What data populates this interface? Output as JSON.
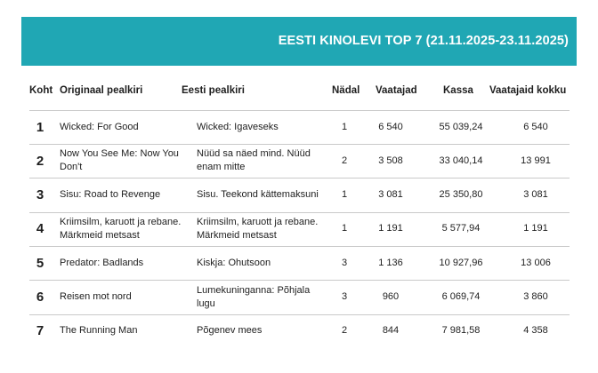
{
  "title": "EESTI KINOLEVI TOP 7 (21.11.2025-23.11.2025)",
  "headers": {
    "rank": "Koht",
    "original": "Originaal pealkiri",
    "estonian": "Eesti pealkiri",
    "week": "Nädal",
    "viewers": "Vaatajad",
    "box": "Kassa",
    "total": "Vaatajaid kokku"
  },
  "rows": [
    {
      "rank": "1",
      "original": "Wicked: For Good",
      "estonian": "Wicked: Igaveseks",
      "week": "1",
      "viewers": "6 540",
      "box": "55 039,24",
      "total": "6 540"
    },
    {
      "rank": "2",
      "original": "Now You See Me: Now You Don't",
      "estonian": "Nüüd sa näed mind. Nüüd enam mitte",
      "week": "2",
      "viewers": "3 508",
      "box": "33 040,14",
      "total": "13 991"
    },
    {
      "rank": "3",
      "original": "Sisu: Road to Revenge",
      "estonian": "Sisu. Teekond kättemaksuni",
      "week": "1",
      "viewers": "3 081",
      "box": "25 350,80",
      "total": "3 081"
    },
    {
      "rank": "4",
      "original": "Kriimsilm, karuott ja rebane. Märkmeid metsast",
      "estonian": "Kriimsilm, karuott ja rebane. Märkmeid metsast",
      "week": "1",
      "viewers": "1 191",
      "box": "5 577,94",
      "total": "1 191"
    },
    {
      "rank": "5",
      "original": "Predator: Badlands",
      "estonian": "Kiskja: Ohutsoon",
      "week": "3",
      "viewers": "1 136",
      "box": "10 927,96",
      "total": "13 006"
    },
    {
      "rank": "6",
      "original": "Reisen mot nord",
      "estonian": "Lumekuninganna: Põhjala lugu",
      "week": "3",
      "viewers": "960",
      "box": "6 069,74",
      "total": "3 860"
    },
    {
      "rank": "7",
      "original": "The Running Man",
      "estonian": "Põgenev mees",
      "week": "2",
      "viewers": "844",
      "box": "7 981,58",
      "total": "4 358"
    }
  ]
}
